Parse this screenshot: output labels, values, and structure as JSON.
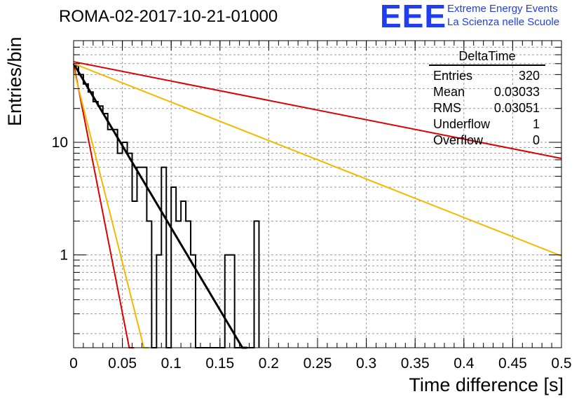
{
  "header": {
    "title": "ROMA-02-2017-10-21-01000",
    "logo_text": "EEE",
    "org_line1": "Extreme Energy Events",
    "org_line2": "La Scienza nelle Scuole"
  },
  "stats": {
    "title": "DeltaTime",
    "rows": [
      {
        "label": "Entries",
        "value": "320"
      },
      {
        "label": "Mean",
        "value": "0.03033"
      },
      {
        "label": "RMS",
        "value": "0.03051"
      },
      {
        "label": "Underflow",
        "value": "1"
      },
      {
        "label": "Overflow",
        "value": "0"
      }
    ]
  },
  "colors": {
    "accent": "#1f3ef0",
    "red": "#dd0000",
    "orange": "#f5b800",
    "black": "#000000"
  },
  "chart_data": {
    "type": "histogram",
    "xlabel": "Time difference [s]",
    "ylabel": "Entries/bin",
    "xlim": [
      0,
      0.5
    ],
    "ylim": [
      0.15,
      80
    ],
    "yscale": "log",
    "grid": true,
    "legend_position": "top-right",
    "x_ticks": [
      "0",
      "0.05",
      "0.1",
      "0.15",
      "0.2",
      "0.25",
      "0.3",
      "0.35",
      "0.4",
      "0.45",
      "0.5"
    ],
    "y_ticks": [
      "1",
      "10"
    ],
    "bin_width": 0.005,
    "bin_contents": [
      48,
      40,
      33,
      28,
      23,
      21,
      18,
      13,
      13,
      8,
      10,
      8,
      3,
      6,
      6,
      2,
      0,
      1,
      6,
      0,
      4,
      2,
      3,
      2,
      1,
      0,
      0,
      0,
      0,
      0,
      0,
      1,
      1,
      0,
      0,
      0,
      0,
      2
    ],
    "fits": [
      {
        "color": "red",
        "x": [
          0,
          0.057,
          0.062
        ],
        "y": [
          50,
          0.15,
          0.15
        ]
      },
      {
        "color": "orange",
        "x": [
          0,
          0.072,
          0.077
        ],
        "y": [
          45,
          0.15,
          0.15
        ]
      },
      {
        "color": "black",
        "x": [
          0,
          0.173,
          0.178
        ],
        "y": [
          50,
          0.15,
          0.15
        ]
      },
      {
        "color": "orange",
        "x": [
          0,
          0.5
        ],
        "y": [
          50,
          0.98
        ]
      },
      {
        "color": "red",
        "x": [
          0,
          0.5
        ],
        "y": [
          52,
          7.2
        ]
      }
    ]
  }
}
